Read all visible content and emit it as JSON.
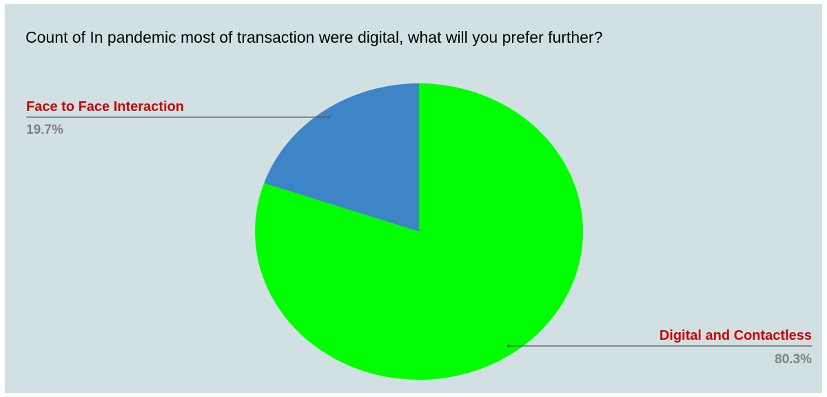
{
  "chart_data": {
    "type": "pie",
    "title": "Count of In pandemic most of transaction were digital, what will you prefer further?",
    "slices": [
      {
        "label": "Face to Face Interaction",
        "value": 19.7,
        "display": "19.7%",
        "color": "#3d85c6"
      },
      {
        "label": "Digital and Contactless",
        "value": 80.3,
        "display": "80.3%",
        "color": "#00ff00"
      }
    ],
    "background_color": "#d0e0e3",
    "label_color": "#cc0000",
    "percent_color": "#808080"
  }
}
